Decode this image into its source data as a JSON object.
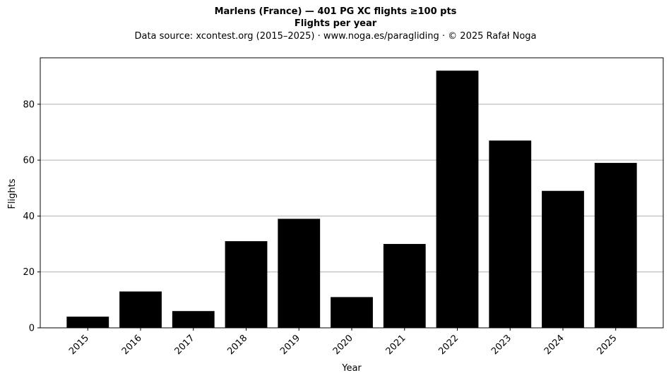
{
  "chart_data": {
    "type": "bar",
    "title": "Marlens (France)  —  401 PG XC flights ≥100 pts",
    "subtitle": "Flights per year",
    "source": "Data source: xcontest.org (2015–2025)  ·  www.noga.es/paragliding  ·  © 2025 Rafał Noga",
    "xlabel": "Year",
    "ylabel": "Flights",
    "categories": [
      "2015",
      "2016",
      "2017",
      "2018",
      "2019",
      "2020",
      "2021",
      "2022",
      "2023",
      "2024",
      "2025"
    ],
    "values": [
      4,
      13,
      6,
      31,
      39,
      11,
      30,
      92,
      67,
      49,
      59
    ],
    "ylim": [
      0,
      96.6
    ],
    "yticks": [
      0,
      20,
      40,
      60,
      80
    ],
    "grid": "y-major",
    "bar_color": "#000000",
    "grid_color": "#b0b0b0"
  }
}
